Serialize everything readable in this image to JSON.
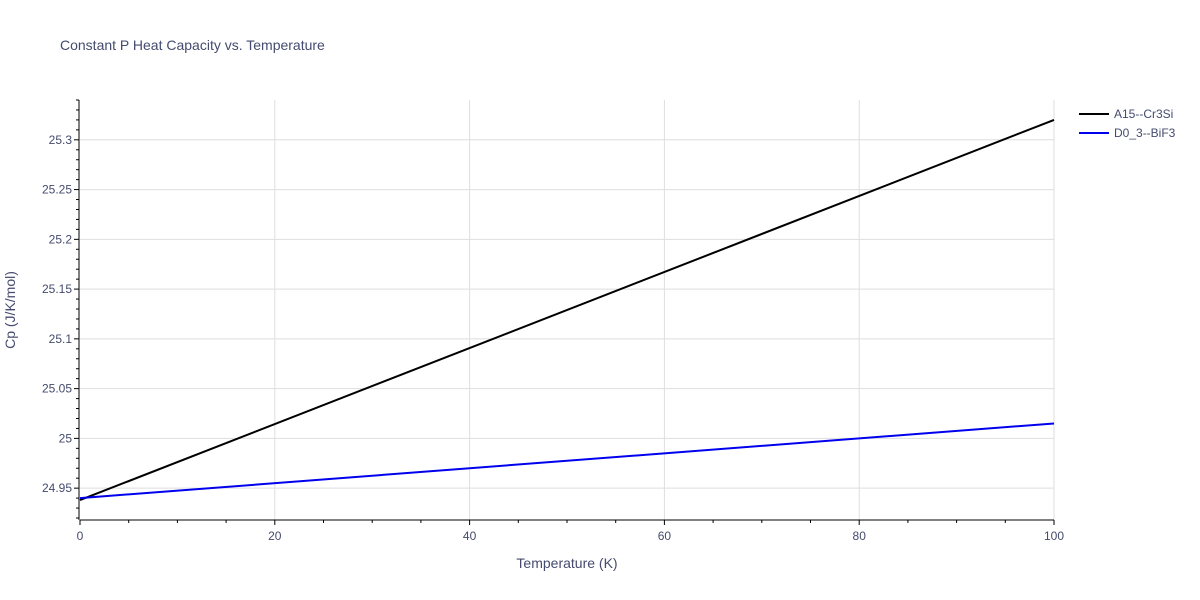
{
  "chart_data": {
    "type": "line",
    "title": "Constant P Heat Capacity vs. Temperature",
    "xlabel": "Temperature (K)",
    "ylabel": "Cp (J/K/mol)",
    "xlim": [
      0,
      100
    ],
    "ylim": [
      24.918,
      25.34
    ],
    "x_ticks": [
      0,
      20,
      40,
      60,
      80,
      100
    ],
    "y_ticks": [
      24.95,
      25,
      25.05,
      25.1,
      25.15,
      25.2,
      25.25,
      25.3
    ],
    "grid": true,
    "legend_position": "top-right, outside plot",
    "series": [
      {
        "name": "A15--Cr3Si",
        "color": "#000000",
        "x": [
          0,
          100
        ],
        "y": [
          24.938,
          25.32
        ]
      },
      {
        "name": "D0_3--BiF3",
        "color": "#0000ee",
        "x": [
          0,
          100
        ],
        "y": [
          24.94,
          25.015
        ]
      }
    ]
  }
}
